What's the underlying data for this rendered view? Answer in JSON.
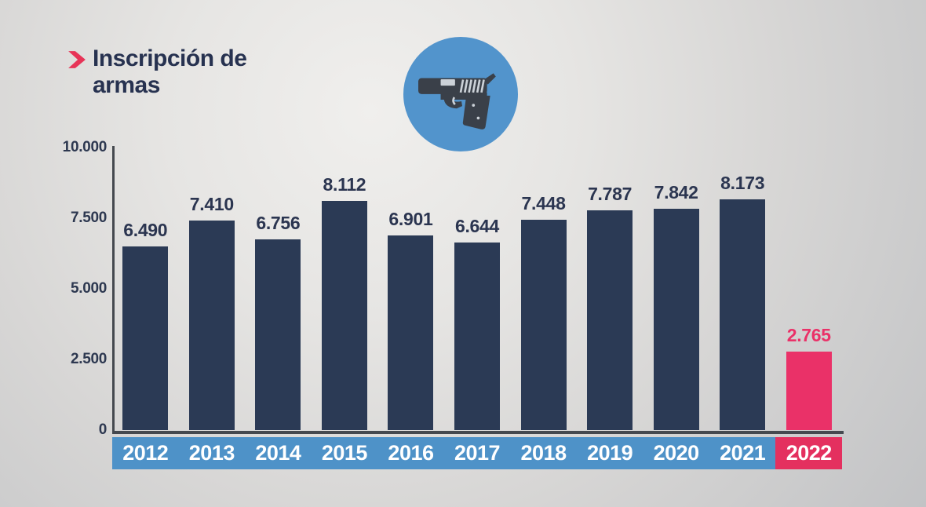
{
  "header": {
    "title": "Inscripción de armas",
    "marker_icon": "chevron-right-icon"
  },
  "badge": {
    "icon": "pistol-icon"
  },
  "colors": {
    "background_center": "#f0efed",
    "background_edge": "#c2c3c5",
    "title_text": "#273250",
    "accent_pink": "#e73457",
    "bar_navy": "#2b3a55",
    "bar_pink": "#ea3168",
    "value_label_navy": "#2b3550",
    "value_label_pink": "#ea3168",
    "band_blue": "#4e92c8",
    "band_pink": "#e4305f",
    "year_text": "#ffffff",
    "axis_line": "#45494f",
    "tick_text": "#2d3850",
    "icon_circle_blue": "#5294cc",
    "pistol_body": "#3a4049",
    "pistol_detail": "#ccd2d8"
  },
  "chart_data": {
    "type": "bar",
    "title": "Inscripción de armas",
    "categories": [
      "2012",
      "2013",
      "2014",
      "2015",
      "2016",
      "2017",
      "2018",
      "2019",
      "2020",
      "2021",
      "2022"
    ],
    "values": [
      6490,
      7410,
      6756,
      8112,
      6901,
      6644,
      7448,
      7787,
      7842,
      8173,
      2765
    ],
    "value_labels": [
      "6.490",
      "7.410",
      "6.756",
      "8.112",
      "6.901",
      "6.644",
      "7.448",
      "7.787",
      "7.842",
      "8.173",
      "2.765"
    ],
    "highlight_index": 10,
    "xlabel": "",
    "ylabel": "",
    "ylim": [
      0,
      10000
    ],
    "yticks": {
      "values": [
        0,
        2500,
        5000,
        7500,
        10000
      ],
      "labels": [
        "0",
        "2.500",
        "5.000",
        "7.500",
        "10.000"
      ]
    },
    "grid": false,
    "legend_position": "none"
  }
}
